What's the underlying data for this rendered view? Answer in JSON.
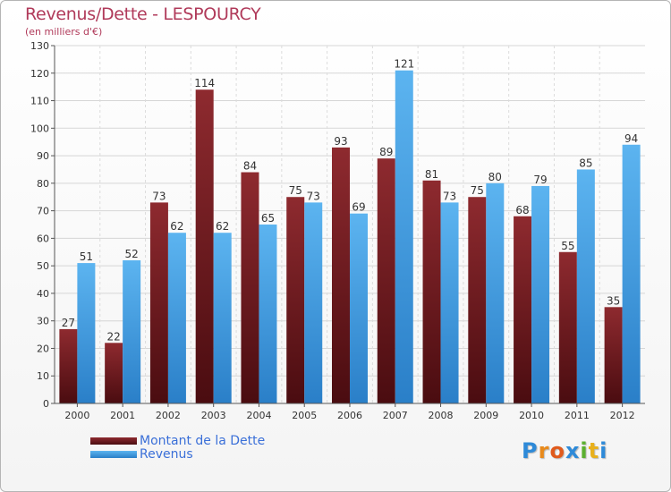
{
  "chart_data": {
    "type": "bar",
    "title": "Revenus/Dette - LESPOURCY",
    "subtitle": "(en milliers d'€)",
    "categories": [
      "2000",
      "2001",
      "2002",
      "2003",
      "2004",
      "2005",
      "2006",
      "2007",
      "2008",
      "2009",
      "2010",
      "2011",
      "2012"
    ],
    "series": [
      {
        "name": "Montant de la Dette",
        "color": "#7a1f25",
        "values": [
          27,
          22,
          73,
          114,
          84,
          75,
          93,
          89,
          81,
          75,
          68,
          55,
          35
        ]
      },
      {
        "name": "Revenus",
        "color": "#3d9be0",
        "values": [
          51,
          52,
          62,
          62,
          65,
          73,
          69,
          121,
          73,
          80,
          79,
          85,
          94
        ]
      }
    ],
    "ylim": [
      0,
      130
    ],
    "ytick_step": 10,
    "grid": true,
    "legend_position": "bottom-left"
  },
  "brand": {
    "letters": [
      "P",
      "r",
      "o",
      "x",
      "i",
      "t",
      "i"
    ],
    "colors": [
      "#2e8ad8",
      "#e88a1c",
      "#e05a1c",
      "#2e8ad8",
      "#5bb030",
      "#e8b01c",
      "#2e8ad8"
    ]
  }
}
